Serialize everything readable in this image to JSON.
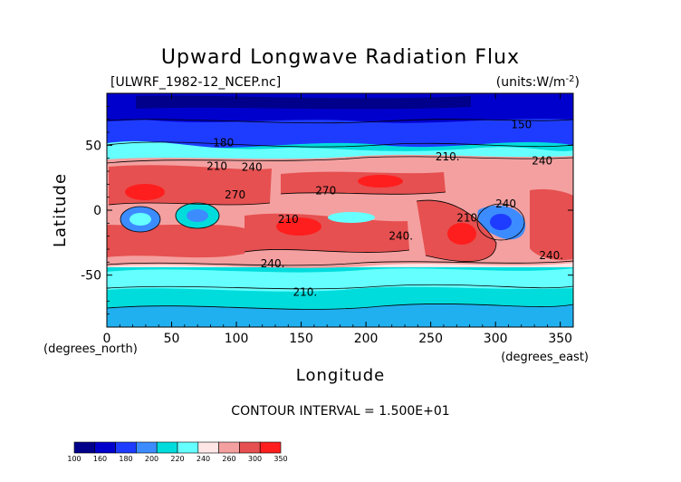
{
  "chart_data": {
    "type": "heatmap",
    "title": "Upward Longwave Radiation Flux",
    "file_label": "[ULWRF_1982-12_NCEP.nc]",
    "units_label": "(units:W/m^2)",
    "xlabel": "Longitude",
    "ylabel": "Latitude",
    "x_units_label": "(degrees_east)",
    "y_units_label": "(degrees_north)",
    "contour_interval_label": "CONTOUR INTERVAL = 1.500E+01",
    "xlim": [
      0,
      360
    ],
    "ylim": [
      -90,
      90
    ],
    "x_ticks": [
      0,
      50,
      100,
      150,
      200,
      250,
      300,
      350
    ],
    "y_ticks": [
      -50,
      0,
      50
    ],
    "colorbar": {
      "ticks": [
        "100",
        "160",
        "180",
        "200",
        "220",
        "240",
        "260",
        "300",
        "350"
      ],
      "colors": [
        "#00008b",
        "#0000cd",
        "#1e3cff",
        "#3c8cff",
        "#00dcdc",
        "#66ffff",
        "#ffe6e6",
        "#f4a0a0",
        "#e65050",
        "#ff1e1e"
      ]
    },
    "contour_labels": [
      {
        "text": "150",
        "lon": 320,
        "lat": 66
      },
      {
        "text": "180",
        "lon": 90,
        "lat": 52
      },
      {
        "text": "210",
        "lon": 85,
        "lat": 34
      },
      {
        "text": "240",
        "lon": 112,
        "lat": 33
      },
      {
        "text": "210.",
        "lon": 263,
        "lat": 41
      },
      {
        "text": "240",
        "lon": 336,
        "lat": 38
      },
      {
        "text": "270",
        "lon": 99,
        "lat": 12
      },
      {
        "text": "270",
        "lon": 169,
        "lat": 15
      },
      {
        "text": "240",
        "lon": 308,
        "lat": 5
      },
      {
        "text": "210",
        "lon": 140,
        "lat": -7
      },
      {
        "text": "210",
        "lon": 278,
        "lat": -6
      },
      {
        "text": "240.",
        "lon": 227,
        "lat": -20
      },
      {
        "text": "240.",
        "lon": 343,
        "lat": -35
      },
      {
        "text": "240.",
        "lon": 128,
        "lat": -41
      },
      {
        "text": "210.",
        "lon": 153,
        "lat": -63
      }
    ]
  }
}
